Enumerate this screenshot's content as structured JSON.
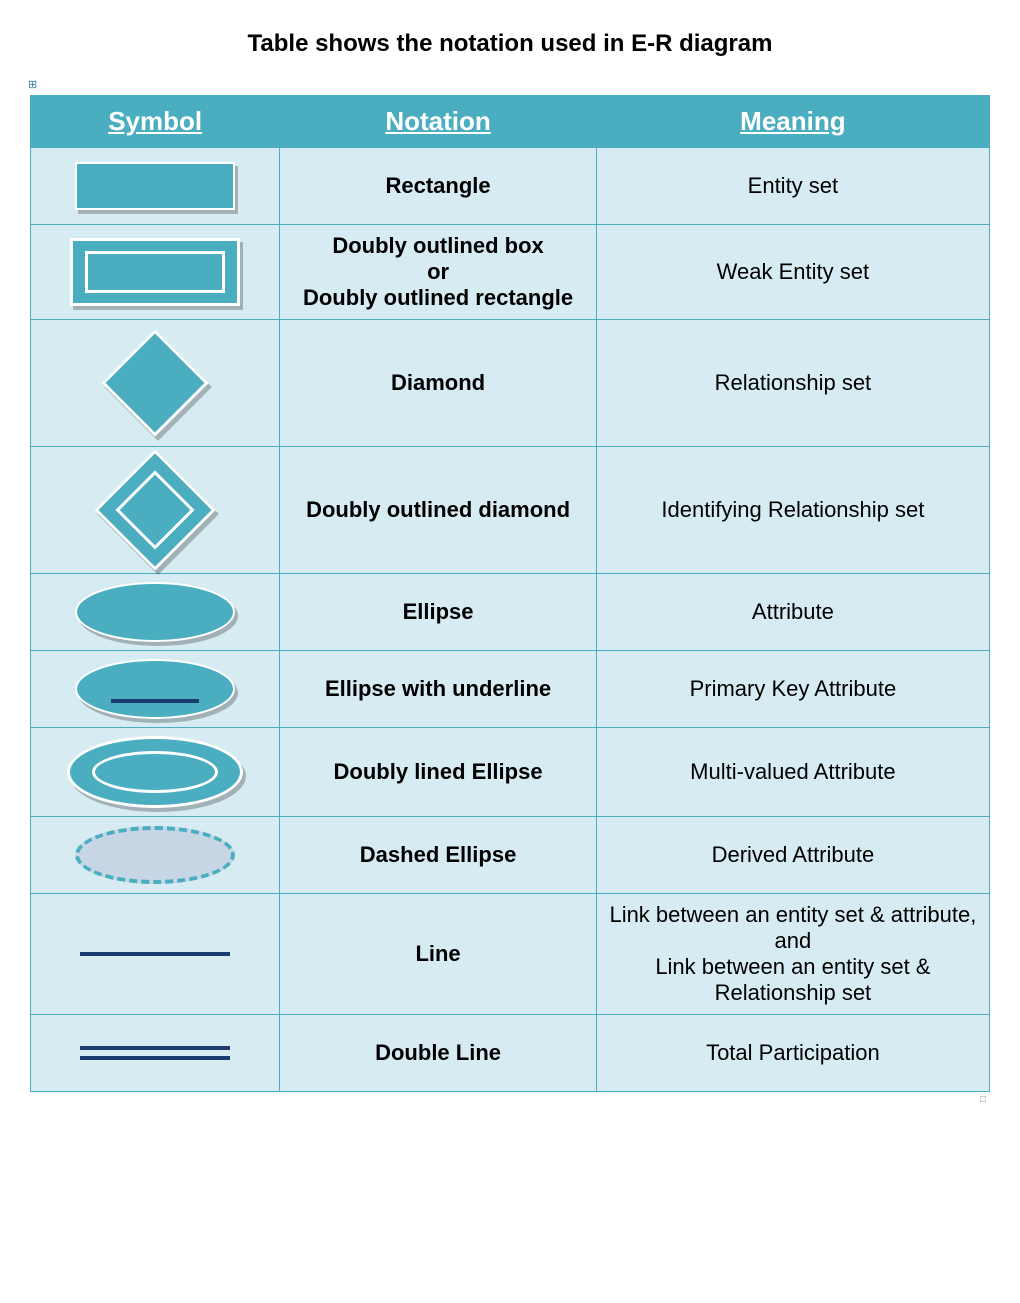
{
  "title": "Table shows the notation used in E-R diagram",
  "columns": {
    "symbol": "Symbol",
    "notation": "Notation",
    "meaning": "Meaning"
  },
  "rows": [
    {
      "shape": "rectangle",
      "notation": "Rectangle",
      "meaning": "Entity set"
    },
    {
      "shape": "double-rectangle",
      "notation": "Doubly outlined box\nor\nDoubly outlined rectangle",
      "meaning": "Weak Entity set"
    },
    {
      "shape": "diamond",
      "notation": "Diamond",
      "meaning": "Relationship set"
    },
    {
      "shape": "double-diamond",
      "notation": "Doubly outlined diamond",
      "meaning": "Identifying Relationship set"
    },
    {
      "shape": "ellipse",
      "notation": "Ellipse",
      "meaning": "Attribute"
    },
    {
      "shape": "ellipse-underline",
      "notation": "Ellipse with underline",
      "meaning": "Primary Key Attribute"
    },
    {
      "shape": "double-ellipse",
      "notation": "Doubly lined Ellipse",
      "meaning": "Multi-valued Attribute"
    },
    {
      "shape": "dashed-ellipse",
      "notation": "Dashed Ellipse",
      "meaning": "Derived Attribute"
    },
    {
      "shape": "line",
      "notation": "Line",
      "meaning": "Link between an entity set & attribute,\nand\nLink between an entity set & Relationship set"
    },
    {
      "shape": "double-line",
      "notation": "Double Line",
      "meaning": "Total Participation"
    }
  ],
  "style": {
    "type": "table",
    "header_bg": "#4aaec0",
    "header_text_color": "#ffffff",
    "header_fontsize": 26,
    "cell_bg": "#d7ecf2",
    "cell_border": "#4aaec0",
    "notation_fontweight": "bold",
    "meaning_fontweight": "normal",
    "body_fontsize": 22,
    "shape_fill": "#4aaec0",
    "shape_outline": "#ffffff",
    "dashed_fill": "#c7d6e5",
    "line_color": "#1d3b6f",
    "shadow_color": "rgba(0,0,0,0.25)",
    "column_widths_pct": [
      26,
      33,
      41
    ]
  }
}
